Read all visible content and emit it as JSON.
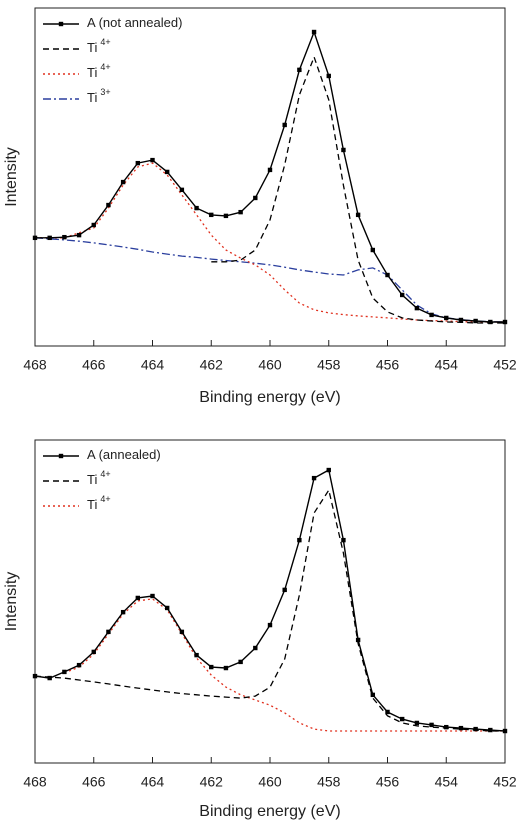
{
  "chart_data": [
    {
      "type": "line",
      "xlabel": "Binding energy (eV)",
      "ylabel": "Intensity",
      "xlim": [
        468,
        452
      ],
      "ylim": [
        0,
        100
      ],
      "xticks": [
        468,
        466,
        464,
        462,
        460,
        458,
        456,
        454,
        452
      ],
      "legend": "upper left",
      "x": [
        468,
        467.5,
        467,
        466.5,
        466,
        465.5,
        465,
        464.5,
        464,
        463.5,
        463,
        462.5,
        462,
        461.5,
        461,
        460.5,
        460,
        459.5,
        459,
        458.5,
        458,
        457.5,
        457,
        456.5,
        456,
        455.5,
        455,
        454.5,
        454,
        453.5,
        453,
        452.5,
        452
      ],
      "series": [
        {
          "name": "A (not annealed)",
          "color": "#000000",
          "style": "solid",
          "marker": "square",
          "values": [
            32.0,
            32.0,
            32.2,
            32.8,
            35.8,
            41.7,
            48.5,
            54.1,
            55.0,
            51.5,
            46.2,
            40.8,
            38.8,
            38.5,
            39.6,
            43.8,
            52.1,
            65.4,
            81.7,
            92.9,
            79.9,
            58.0,
            38.8,
            28.4,
            21.0,
            15.1,
            11.2,
            9.2,
            8.3,
            7.7,
            7.4,
            7.1,
            7.1
          ]
        },
        {
          "name": "Ti",
          "name_sup": "4+",
          "color": "#000000",
          "style": "dashed",
          "marker": "none",
          "values": [
            null,
            null,
            null,
            null,
            null,
            null,
            null,
            null,
            null,
            null,
            null,
            null,
            24.9,
            24.9,
            25.4,
            28.4,
            37.3,
            53.6,
            74.3,
            85.5,
            72.8,
            47.6,
            25.4,
            14.2,
            10.1,
            8.3,
            7.7,
            7.4,
            7.1,
            7.0,
            6.8,
            6.8,
            6.8
          ]
        },
        {
          "name": "Ti",
          "name_sup": "4+",
          "color": "#e0301e",
          "style": "dotted",
          "marker": "none",
          "values": [
            32.0,
            32.0,
            32.0,
            33.5,
            34.9,
            40.8,
            47.6,
            53.0,
            54.1,
            50.6,
            44.7,
            38.8,
            32.8,
            28.4,
            26.0,
            24.0,
            21.0,
            16.6,
            12.7,
            10.7,
            9.8,
            9.3,
            8.9,
            8.6,
            8.3,
            8.0,
            7.7,
            7.5,
            7.4,
            7.2,
            7.1,
            7.1,
            7.1
          ]
        },
        {
          "name": "Ti",
          "name_sup": "3+",
          "color": "#2b3f9e",
          "style": "dashdot",
          "marker": "none",
          "values": [
            32.0,
            31.7,
            31.4,
            31.0,
            30.5,
            29.9,
            29.3,
            28.6,
            27.8,
            27.2,
            26.6,
            26.2,
            25.7,
            25.3,
            24.9,
            24.5,
            24.0,
            23.3,
            22.5,
            21.9,
            21.3,
            21.0,
            22.5,
            23.1,
            21.0,
            16.6,
            12.1,
            9.5,
            8.3,
            7.8,
            7.4,
            7.2,
            7.1
          ]
        }
      ]
    },
    {
      "type": "line",
      "xlabel": "Binding energy (eV)",
      "ylabel": "Intensity",
      "xlim": [
        468,
        452
      ],
      "ylim": [
        0,
        100
      ],
      "xticks": [
        468,
        466,
        464,
        462,
        460,
        458,
        456,
        454,
        452
      ],
      "legend": "upper left",
      "x": [
        468,
        467.5,
        467,
        466.5,
        466,
        465.5,
        465,
        464.5,
        464,
        463.5,
        463,
        462.5,
        462,
        461.5,
        461,
        460.5,
        460,
        459.5,
        459,
        458.5,
        458,
        457.5,
        457,
        456.5,
        456,
        455.5,
        455,
        454.5,
        454,
        453.5,
        453,
        452.5,
        452
      ],
      "series": [
        {
          "name": "A (annealed)",
          "color": "#000000",
          "style": "solid",
          "marker": "square",
          "values": [
            26.9,
            26.3,
            28.2,
            30.3,
            34.4,
            40.6,
            46.7,
            51.1,
            51.7,
            48.0,
            40.6,
            33.4,
            29.7,
            29.4,
            31.3,
            35.6,
            42.7,
            53.6,
            69.0,
            88.2,
            90.7,
            69.0,
            38.1,
            21.1,
            15.8,
            13.6,
            12.4,
            11.8,
            11.1,
            10.8,
            10.5,
            10.2,
            9.9
          ]
        },
        {
          "name": "Ti",
          "name_sup": "4+",
          "color": "#000000",
          "style": "dashed",
          "marker": "none",
          "values": [
            26.9,
            26.6,
            26.3,
            25.7,
            25.1,
            24.5,
            23.8,
            23.2,
            22.6,
            22.0,
            21.5,
            21.1,
            20.7,
            20.4,
            20.1,
            20.7,
            23.5,
            32.2,
            52.0,
            77.4,
            84.5,
            65.0,
            37.0,
            20.1,
            14.6,
            12.4,
            11.5,
            11.1,
            10.8,
            10.5,
            10.2,
            9.9,
            9.9
          ]
        },
        {
          "name": "Ti",
          "name_sup": "4+",
          "color": "#e0301e",
          "style": "dotted",
          "marker": "none",
          "values": [
            null,
            null,
            27.9,
            29.7,
            33.7,
            39.9,
            46.1,
            50.2,
            50.8,
            47.4,
            40.0,
            32.5,
            27.2,
            23.5,
            21.1,
            19.5,
            17.9,
            15.5,
            12.4,
            10.5,
            9.9,
            9.9,
            9.9,
            9.9,
            9.9,
            9.9,
            9.9,
            9.9,
            9.9,
            9.9,
            9.9,
            9.9,
            9.9
          ]
        }
      ]
    }
  ]
}
